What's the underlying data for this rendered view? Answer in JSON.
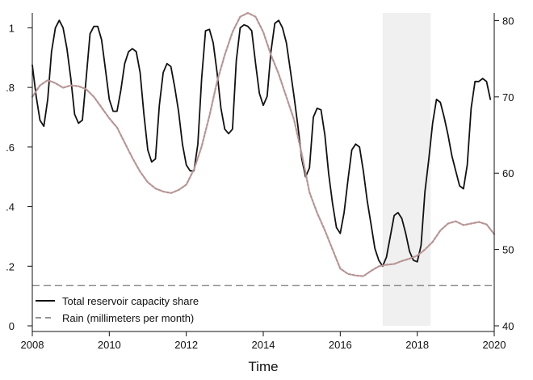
{
  "chart_data": {
    "type": "line",
    "title": "",
    "xlabel": "Time",
    "ylabel_left": "",
    "ylabel_right": "",
    "xlim": [
      2008,
      2020
    ],
    "ylim_left": [
      0,
      1.05
    ],
    "ylim_right": [
      40,
      81
    ],
    "x_ticks": [
      {
        "value": 2008,
        "label": "2008"
      },
      {
        "value": 2010,
        "label": "2010"
      },
      {
        "value": 2012,
        "label": "2012"
      },
      {
        "value": 2014,
        "label": "2014"
      },
      {
        "value": 2016,
        "label": "2016"
      },
      {
        "value": 2018,
        "label": "2018"
      },
      {
        "value": 2020,
        "label": "2020"
      }
    ],
    "y_left_ticks": [
      {
        "value": 0,
        "label": "0"
      },
      {
        "value": 0.2,
        "label": ".2"
      },
      {
        "value": 0.4,
        "label": ".4"
      },
      {
        "value": 0.6,
        "label": ".6"
      },
      {
        "value": 0.8,
        "label": ".8"
      },
      {
        "value": 1.0,
        "label": "1"
      }
    ],
    "y_right_ticks": [
      {
        "value": 40,
        "label": "40"
      },
      {
        "value": 50,
        "label": "50"
      },
      {
        "value": 60,
        "label": "60"
      },
      {
        "value": 70,
        "label": "70"
      },
      {
        "value": 80,
        "label": "80"
      }
    ],
    "shaded_region": {
      "x_start": 2017.1,
      "x_end": 2018.35,
      "color": "#f0f0f0"
    },
    "reference_line": {
      "axis": "left",
      "y": 0.135,
      "color": "#777777"
    },
    "series": [
      {
        "name": "Total reservoir capacity share",
        "axis": "left",
        "style": "solid",
        "color": "#111111",
        "points": [
          [
            2008.0,
            0.875
          ],
          [
            2008.1,
            0.77
          ],
          [
            2008.2,
            0.69
          ],
          [
            2008.3,
            0.67
          ],
          [
            2008.4,
            0.76
          ],
          [
            2008.5,
            0.92
          ],
          [
            2008.6,
            1.0
          ],
          [
            2008.7,
            1.025
          ],
          [
            2008.8,
            1.0
          ],
          [
            2008.9,
            0.93
          ],
          [
            2009.0,
            0.83
          ],
          [
            2009.1,
            0.71
          ],
          [
            2009.2,
            0.68
          ],
          [
            2009.3,
            0.69
          ],
          [
            2009.4,
            0.83
          ],
          [
            2009.5,
            0.98
          ],
          [
            2009.6,
            1.005
          ],
          [
            2009.7,
            1.005
          ],
          [
            2009.8,
            0.96
          ],
          [
            2009.9,
            0.86
          ],
          [
            2010.0,
            0.76
          ],
          [
            2010.1,
            0.72
          ],
          [
            2010.2,
            0.72
          ],
          [
            2010.3,
            0.79
          ],
          [
            2010.4,
            0.88
          ],
          [
            2010.5,
            0.92
          ],
          [
            2010.6,
            0.93
          ],
          [
            2010.7,
            0.92
          ],
          [
            2010.8,
            0.85
          ],
          [
            2010.9,
            0.71
          ],
          [
            2011.0,
            0.59
          ],
          [
            2011.1,
            0.55
          ],
          [
            2011.2,
            0.56
          ],
          [
            2011.3,
            0.74
          ],
          [
            2011.4,
            0.85
          ],
          [
            2011.5,
            0.88
          ],
          [
            2011.6,
            0.87
          ],
          [
            2011.7,
            0.8
          ],
          [
            2011.8,
            0.72
          ],
          [
            2011.9,
            0.61
          ],
          [
            2012.0,
            0.54
          ],
          [
            2012.1,
            0.52
          ],
          [
            2012.2,
            0.52
          ],
          [
            2012.3,
            0.61
          ],
          [
            2012.4,
            0.83
          ],
          [
            2012.5,
            0.99
          ],
          [
            2012.6,
            0.995
          ],
          [
            2012.7,
            0.95
          ],
          [
            2012.8,
            0.85
          ],
          [
            2012.9,
            0.73
          ],
          [
            2013.0,
            0.66
          ],
          [
            2013.1,
            0.645
          ],
          [
            2013.2,
            0.66
          ],
          [
            2013.3,
            0.89
          ],
          [
            2013.4,
            1.0
          ],
          [
            2013.5,
            1.01
          ],
          [
            2013.6,
            1.005
          ],
          [
            2013.7,
            0.99
          ],
          [
            2013.8,
            0.88
          ],
          [
            2013.9,
            0.78
          ],
          [
            2014.0,
            0.74
          ],
          [
            2014.1,
            0.77
          ],
          [
            2014.2,
            0.92
          ],
          [
            2014.3,
            1.015
          ],
          [
            2014.4,
            1.025
          ],
          [
            2014.5,
            1.0
          ],
          [
            2014.6,
            0.95
          ],
          [
            2014.7,
            0.86
          ],
          [
            2014.8,
            0.77
          ],
          [
            2014.9,
            0.67
          ],
          [
            2015.0,
            0.56
          ],
          [
            2015.1,
            0.5
          ],
          [
            2015.2,
            0.53
          ],
          [
            2015.3,
            0.7
          ],
          [
            2015.4,
            0.73
          ],
          [
            2015.5,
            0.725
          ],
          [
            2015.6,
            0.64
          ],
          [
            2015.7,
            0.51
          ],
          [
            2015.8,
            0.41
          ],
          [
            2015.9,
            0.33
          ],
          [
            2016.0,
            0.31
          ],
          [
            2016.1,
            0.38
          ],
          [
            2016.2,
            0.49
          ],
          [
            2016.3,
            0.59
          ],
          [
            2016.4,
            0.61
          ],
          [
            2016.5,
            0.6
          ],
          [
            2016.6,
            0.52
          ],
          [
            2016.7,
            0.42
          ],
          [
            2016.8,
            0.34
          ],
          [
            2016.9,
            0.26
          ],
          [
            2017.0,
            0.22
          ],
          [
            2017.1,
            0.2
          ],
          [
            2017.2,
            0.23
          ],
          [
            2017.3,
            0.3
          ],
          [
            2017.4,
            0.37
          ],
          [
            2017.5,
            0.38
          ],
          [
            2017.6,
            0.36
          ],
          [
            2017.7,
            0.31
          ],
          [
            2017.8,
            0.25
          ],
          [
            2017.9,
            0.22
          ],
          [
            2018.0,
            0.215
          ],
          [
            2018.1,
            0.27
          ],
          [
            2018.2,
            0.45
          ],
          [
            2018.3,
            0.56
          ],
          [
            2018.4,
            0.68
          ],
          [
            2018.5,
            0.76
          ],
          [
            2018.6,
            0.75
          ],
          [
            2018.7,
            0.7
          ],
          [
            2018.8,
            0.64
          ],
          [
            2018.9,
            0.57
          ],
          [
            2019.0,
            0.52
          ],
          [
            2019.1,
            0.47
          ],
          [
            2019.2,
            0.46
          ],
          [
            2019.3,
            0.54
          ],
          [
            2019.4,
            0.73
          ],
          [
            2019.5,
            0.82
          ],
          [
            2019.6,
            0.82
          ],
          [
            2019.7,
            0.83
          ],
          [
            2019.8,
            0.82
          ],
          [
            2019.9,
            0.76
          ]
        ]
      },
      {
        "name": "Rain (millimeters per month)",
        "axis": "right",
        "style": "dashed",
        "color": "#b89494",
        "points": [
          [
            2008.0,
            70.0
          ],
          [
            2008.2,
            71.5
          ],
          [
            2008.4,
            72.2
          ],
          [
            2008.6,
            71.8
          ],
          [
            2008.8,
            71.2
          ],
          [
            2009.0,
            71.5
          ],
          [
            2009.2,
            71.4
          ],
          [
            2009.4,
            71.0
          ],
          [
            2009.6,
            70.0
          ],
          [
            2009.8,
            68.6
          ],
          [
            2010.0,
            67.2
          ],
          [
            2010.2,
            66.0
          ],
          [
            2010.4,
            64.0
          ],
          [
            2010.6,
            62.0
          ],
          [
            2010.8,
            60.2
          ],
          [
            2011.0,
            58.8
          ],
          [
            2011.2,
            58.0
          ],
          [
            2011.4,
            57.6
          ],
          [
            2011.6,
            57.4
          ],
          [
            2011.8,
            57.8
          ],
          [
            2012.0,
            58.5
          ],
          [
            2012.2,
            60.5
          ],
          [
            2012.4,
            63.5
          ],
          [
            2012.6,
            67.5
          ],
          [
            2012.8,
            72.0
          ],
          [
            2013.0,
            75.5
          ],
          [
            2013.2,
            78.5
          ],
          [
            2013.4,
            80.5
          ],
          [
            2013.6,
            81.0
          ],
          [
            2013.8,
            80.5
          ],
          [
            2014.0,
            78.5
          ],
          [
            2014.2,
            75.5
          ],
          [
            2014.4,
            73.0
          ],
          [
            2014.6,
            70.0
          ],
          [
            2014.8,
            67.0
          ],
          [
            2015.0,
            62.5
          ],
          [
            2015.2,
            57.5
          ],
          [
            2015.4,
            54.8
          ],
          [
            2015.6,
            52.5
          ],
          [
            2015.8,
            50.0
          ],
          [
            2016.0,
            47.5
          ],
          [
            2016.2,
            46.8
          ],
          [
            2016.4,
            46.6
          ],
          [
            2016.6,
            46.5
          ],
          [
            2016.8,
            47.2
          ],
          [
            2017.0,
            47.8
          ],
          [
            2017.2,
            48.0
          ],
          [
            2017.4,
            48.1
          ],
          [
            2017.6,
            48.5
          ],
          [
            2017.8,
            48.8
          ],
          [
            2018.0,
            49.2
          ],
          [
            2018.2,
            50.0
          ],
          [
            2018.4,
            51.0
          ],
          [
            2018.6,
            52.5
          ],
          [
            2018.8,
            53.4
          ],
          [
            2019.0,
            53.7
          ],
          [
            2019.2,
            53.2
          ],
          [
            2019.4,
            53.4
          ],
          [
            2019.6,
            53.6
          ],
          [
            2019.8,
            53.3
          ],
          [
            2020.0,
            52.0
          ]
        ]
      }
    ],
    "legend": {
      "position": "bottom-left",
      "entries": [
        {
          "label": "Total reservoir capacity share",
          "style": "solid"
        },
        {
          "label": "Rain (millimeters per month)",
          "style": "dashed"
        }
      ]
    }
  }
}
